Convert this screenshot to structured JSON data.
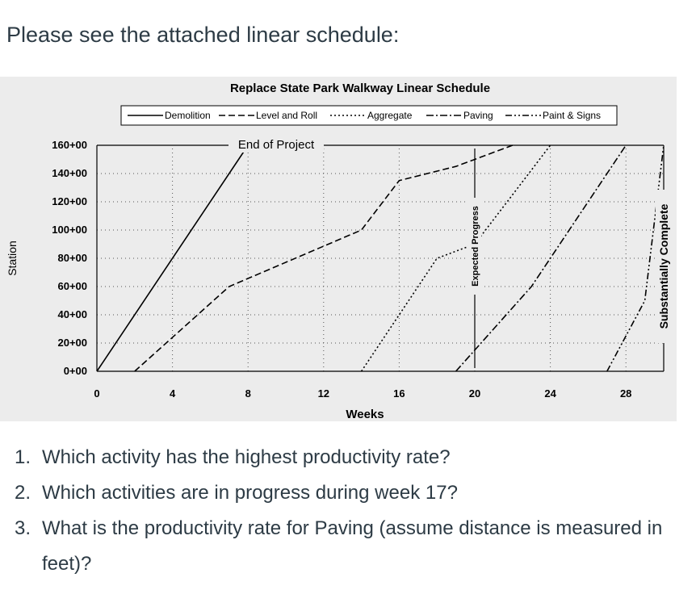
{
  "intro_text": "Please see the attached linear schedule:",
  "questions": [
    {
      "num": "1.",
      "text": "Which activity has the highest productivity rate?"
    },
    {
      "num": "2.",
      "text": "Which activities are in progress during week 17?"
    },
    {
      "num": "3.",
      "text": "What is the productivity rate for Paving (assume distance is measured in feet)?"
    }
  ],
  "chart_data": {
    "type": "line",
    "title": "Replace State Park Walkway Linear Schedule",
    "xlabel": "Weeks",
    "ylabel": "Station",
    "x_ticks": [
      0,
      4,
      8,
      12,
      16,
      20,
      24,
      28
    ],
    "y_ticks": [
      "0+00",
      "20+00",
      "40+00",
      "60+00",
      "80+00",
      "100+00",
      "120+00",
      "140+00",
      "160+00"
    ],
    "xlim": [
      0,
      30
    ],
    "ylim": [
      0,
      16000
    ],
    "grid": true,
    "legend_position": "top",
    "annotations": [
      "End of Project",
      "Expected Progress",
      "Substantially Complete"
    ],
    "series": [
      {
        "name": "Demolition",
        "style": "solid",
        "points": [
          [
            0,
            0
          ],
          [
            8,
            16000
          ]
        ]
      },
      {
        "name": "Level and Roll",
        "style": "dashed",
        "points": [
          [
            2,
            0
          ],
          [
            7,
            6000
          ],
          [
            14,
            10000
          ],
          [
            16,
            13500
          ],
          [
            19,
            14500
          ],
          [
            22,
            16000
          ]
        ]
      },
      {
        "name": "Aggregate",
        "style": "dotted",
        "points": [
          [
            14,
            0
          ],
          [
            18,
            8000
          ],
          [
            20,
            9000
          ],
          [
            24,
            16000
          ]
        ]
      },
      {
        "name": "Paving",
        "style": "dash-dot",
        "points": [
          [
            19,
            0
          ],
          [
            23,
            6000
          ],
          [
            28,
            16000
          ]
        ]
      },
      {
        "name": "Paint & Signs",
        "style": "dash-dot-dot",
        "points": [
          [
            27,
            0
          ],
          [
            29,
            5000
          ],
          [
            30,
            16000
          ]
        ]
      }
    ]
  }
}
